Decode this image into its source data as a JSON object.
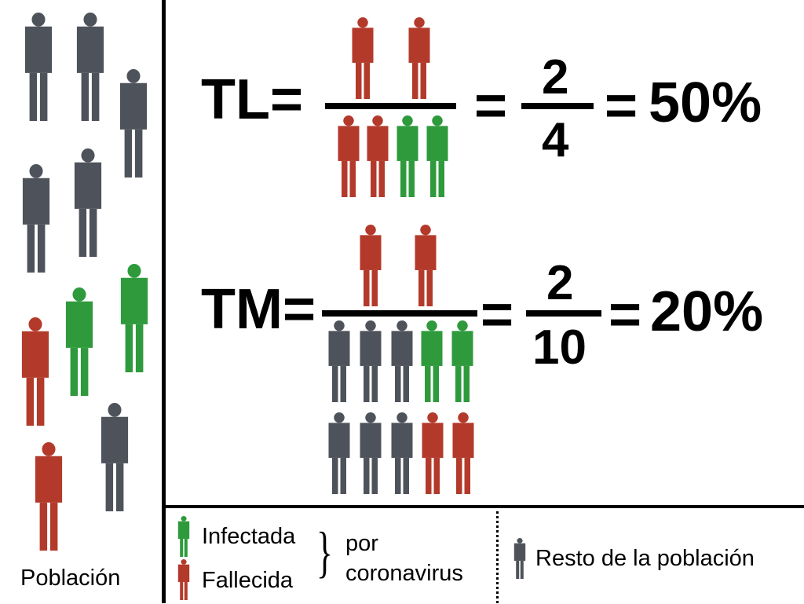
{
  "colors": {
    "infected": "#2e9a3c",
    "deceased": "#b33a2b",
    "rest": "#4e535b"
  },
  "population_label": "Población",
  "formulas": {
    "tl": {
      "label": "TL=",
      "numerator": "2",
      "denominator": "4",
      "result": "50%"
    },
    "tm": {
      "label": "TM=",
      "numerator": "2",
      "denominator": "10",
      "result": "20%"
    },
    "equals": "="
  },
  "legend": {
    "infected": "Infectada",
    "deceased": "Fallecida",
    "brace": "}",
    "por": "por",
    "coronavirus": "coronavirus",
    "rest": "Resto de la población"
  }
}
